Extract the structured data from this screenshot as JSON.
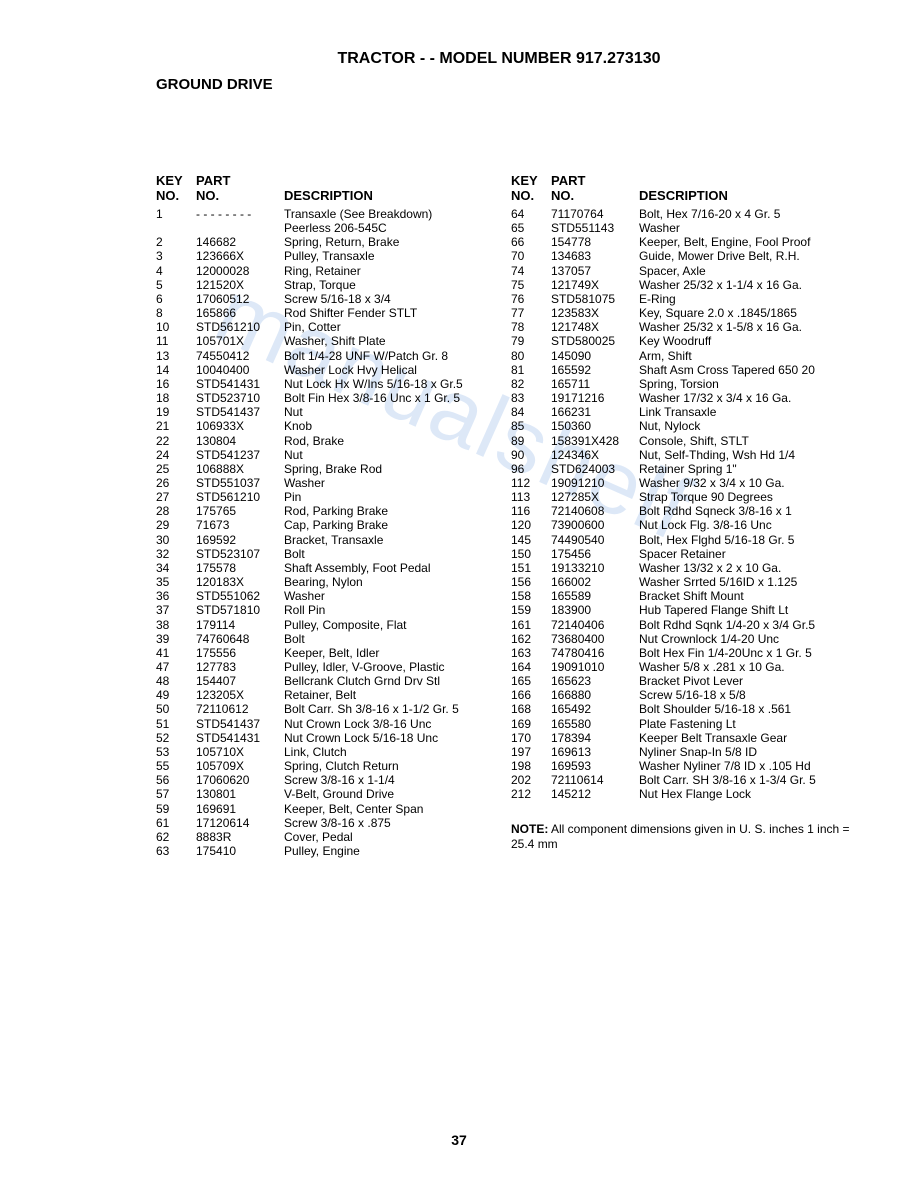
{
  "title": "TRACTOR - - MODEL NUMBER 917.273130",
  "subtitle": "GROUND DRIVE",
  "watermark": "manualshelf",
  "page_number": "37",
  "headers": {
    "key_no": "KEY NO.",
    "part_no": "PART NO.",
    "description": "DESCRIPTION"
  },
  "left_rows": [
    {
      "key": "1",
      "part": "- - - - - - - -",
      "desc": "Transaxle (See Breakdown) Peerless 206-545C"
    },
    {
      "key": "2",
      "part": "146682",
      "desc": "Spring, Return, Brake"
    },
    {
      "key": "3",
      "part": "123666X",
      "desc": "Pulley, Transaxle"
    },
    {
      "key": "4",
      "part": "12000028",
      "desc": "Ring, Retainer"
    },
    {
      "key": "5",
      "part": "121520X",
      "desc": "Strap, Torque"
    },
    {
      "key": "6",
      "part": "17060512",
      "desc": "Screw  5/16-18 x 3/4"
    },
    {
      "key": "8",
      "part": "165866",
      "desc": "Rod Shifter Fender STLT"
    },
    {
      "key": "10",
      "part": "STD561210",
      "desc": "Pin, Cotter"
    },
    {
      "key": "11",
      "part": "105701X",
      "desc": "Washer, Shift Plate"
    },
    {
      "key": "13",
      "part": "74550412",
      "desc": "Bolt 1/4-28 UNF W/Patch Gr. 8"
    },
    {
      "key": "14",
      "part": "10040400",
      "desc": "Washer Lock Hvy Helical"
    },
    {
      "key": "16",
      "part": "STD541431",
      "desc": "Nut Lock Hx W/Ins 5/16-18 x Gr.5"
    },
    {
      "key": "18",
      "part": "STD523710",
      "desc": "Bolt Fin Hex 3/8-16 Unc x 1 Gr. 5"
    },
    {
      "key": "19",
      "part": "STD541437",
      "desc": "Nut"
    },
    {
      "key": "21",
      "part": "106933X",
      "desc": "Knob"
    },
    {
      "key": "22",
      "part": "130804",
      "desc": "Rod, Brake"
    },
    {
      "key": "24",
      "part": "STD541237",
      "desc": "Nut"
    },
    {
      "key": "25",
      "part": "106888X",
      "desc": "Spring, Brake Rod"
    },
    {
      "key": "26",
      "part": "STD551037",
      "desc": "Washer"
    },
    {
      "key": "27",
      "part": "STD561210",
      "desc": "Pin"
    },
    {
      "key": "28",
      "part": "175765",
      "desc": "Rod, Parking Brake"
    },
    {
      "key": "29",
      "part": "71673",
      "desc": "Cap, Parking Brake"
    },
    {
      "key": "30",
      "part": "169592",
      "desc": "Bracket, Transaxle"
    },
    {
      "key": "32",
      "part": "STD523107",
      "desc": "Bolt"
    },
    {
      "key": "34",
      "part": "175578",
      "desc": "Shaft Assembly, Foot Pedal"
    },
    {
      "key": "35",
      "part": "120183X",
      "desc": "Bearing, Nylon"
    },
    {
      "key": "36",
      "part": "STD551062",
      "desc": "Washer"
    },
    {
      "key": "37",
      "part": "STD571810",
      "desc": "Roll Pin"
    },
    {
      "key": "38",
      "part": "179114",
      "desc": "Pulley, Composite, Flat"
    },
    {
      "key": "39",
      "part": "74760648",
      "desc": "Bolt"
    },
    {
      "key": "41",
      "part": "175556",
      "desc": "Keeper, Belt, Idler"
    },
    {
      "key": "47",
      "part": "127783",
      "desc": "Pulley, Idler, V-Groove, Plastic"
    },
    {
      "key": "48",
      "part": "154407",
      "desc": "Bellcrank Clutch Grnd Drv Stl"
    },
    {
      "key": "49",
      "part": "123205X",
      "desc": "Retainer, Belt"
    },
    {
      "key": "50",
      "part": "72110612",
      "desc": "Bolt Carr. Sh 3/8-16 x 1-1/2 Gr. 5"
    },
    {
      "key": "51",
      "part": "STD541437",
      "desc": "Nut Crown Lock 3/8-16 Unc"
    },
    {
      "key": "52",
      "part": "STD541431",
      "desc": "Nut Crown Lock 5/16-18 Unc"
    },
    {
      "key": "53",
      "part": "105710X",
      "desc": "Link, Clutch"
    },
    {
      "key": "55",
      "part": "105709X",
      "desc": "Spring, Clutch Return"
    },
    {
      "key": "56",
      "part": "17060620",
      "desc": "Screw  3/8-16 x 1-1/4"
    },
    {
      "key": "57",
      "part": "130801",
      "desc": "V-Belt, Ground Drive"
    },
    {
      "key": "59",
      "part": "169691",
      "desc": "Keeper, Belt, Center Span"
    },
    {
      "key": "61",
      "part": "17120614",
      "desc": "Screw  3/8-16 x .875"
    },
    {
      "key": "62",
      "part": "8883R",
      "desc": "Cover, Pedal"
    },
    {
      "key": "63",
      "part": "175410",
      "desc": "Pulley, Engine"
    }
  ],
  "right_rows": [
    {
      "key": "64",
      "part": "71170764",
      "desc": "Bolt, Hex 7/16-20 x 4 Gr. 5"
    },
    {
      "key": "65",
      "part": "STD551143",
      "desc": "Washer"
    },
    {
      "key": "66",
      "part": "154778",
      "desc": "Keeper, Belt, Engine, Fool Proof"
    },
    {
      "key": "70",
      "part": "134683",
      "desc": "Guide, Mower Drive Belt, R.H."
    },
    {
      "key": "74",
      "part": "137057",
      "desc": "Spacer, Axle"
    },
    {
      "key": "75",
      "part": "121749X",
      "desc": "Washer 25/32 x 1-1/4 x 16 Ga."
    },
    {
      "key": "76",
      "part": "STD581075",
      "desc": "E-Ring"
    },
    {
      "key": "77",
      "part": "123583X",
      "desc": "Key, Square  2.0 x .1845/1865"
    },
    {
      "key": "78",
      "part": "121748X",
      "desc": "Washer  25/32 x 1-5/8 x 16 Ga."
    },
    {
      "key": "79",
      "part": "STD580025",
      "desc": "Key Woodruff"
    },
    {
      "key": "80",
      "part": "145090",
      "desc": "Arm, Shift"
    },
    {
      "key": "81",
      "part": "165592",
      "desc": "Shaft Asm Cross Tapered 650 20"
    },
    {
      "key": "82",
      "part": "165711",
      "desc": "Spring, Torsion"
    },
    {
      "key": "83",
      "part": "19171216",
      "desc": "Washer  17/32 x 3/4 x 16 Ga."
    },
    {
      "key": "84",
      "part": "166231",
      "desc": "Link Transaxle"
    },
    {
      "key": "85",
      "part": "150360",
      "desc": "Nut, Nylock"
    },
    {
      "key": "89",
      "part": "158391X428",
      "desc": "Console, Shift, STLT"
    },
    {
      "key": "90",
      "part": "124346X",
      "desc": "Nut, Self-Thding, Wsh Hd 1/4"
    },
    {
      "key": "96",
      "part": "STD624003",
      "desc": "Retainer Spring 1\""
    },
    {
      "key": "112",
      "part": "19091210",
      "desc": "Washer  9/32 x 3/4 x 10 Ga."
    },
    {
      "key": "113",
      "part": "127285X",
      "desc": "Strap Torque 90 Degrees"
    },
    {
      "key": "116",
      "part": "72140608",
      "desc": "Bolt Rdhd Sqneck 3/8-16 x 1"
    },
    {
      "key": "120",
      "part": "73900600",
      "desc": "Nut Lock Flg.  3/8-16 Unc"
    },
    {
      "key": "145",
      "part": "74490540",
      "desc": "Bolt, Hex Flghd  5/16-18 Gr. 5"
    },
    {
      "key": "150",
      "part": "175456",
      "desc": "Spacer Retainer"
    },
    {
      "key": "151",
      "part": "19133210",
      "desc": "Washer  13/32 x 2 x 10 Ga."
    },
    {
      "key": "156",
      "part": "166002",
      "desc": "Washer Srrted 5/16ID x 1.125"
    },
    {
      "key": "158",
      "part": "165589",
      "desc": "Bracket Shift Mount"
    },
    {
      "key": "159",
      "part": "183900",
      "desc": "Hub Tapered Flange Shift Lt"
    },
    {
      "key": "161",
      "part": "72140406",
      "desc": "Bolt Rdhd Sqnk 1/4-20 x 3/4 Gr.5"
    },
    {
      "key": "162",
      "part": "73680400",
      "desc": "Nut Crownlock 1/4-20 Unc"
    },
    {
      "key": "163",
      "part": "74780416",
      "desc": "Bolt Hex Fin 1/4-20Unc x 1 Gr.  5"
    },
    {
      "key": "164",
      "part": "19091010",
      "desc": "Washer 5/8 x .281 x 10 Ga."
    },
    {
      "key": "165",
      "part": "165623",
      "desc": "Bracket Pivot Lever"
    },
    {
      "key": "166",
      "part": "166880",
      "desc": "Screw 5/16-18 x 5/8"
    },
    {
      "key": "168",
      "part": "165492",
      "desc": "Bolt Shoulder 5/16-18 x .561"
    },
    {
      "key": "169",
      "part": "165580",
      "desc": "Plate Fastening Lt"
    },
    {
      "key": "170",
      "part": "178394",
      "desc": "Keeper Belt Transaxle Gear"
    },
    {
      "key": "197",
      "part": "169613",
      "desc": "Nyliner Snap-In 5/8 ID"
    },
    {
      "key": "198",
      "part": "169593",
      "desc": "Washer Nyliner 7/8 ID x .105 Hd"
    },
    {
      "key": "202",
      "part": "72110614",
      "desc": "Bolt Carr. SH 3/8-16 x 1-3/4 Gr. 5"
    },
    {
      "key": "212",
      "part": "145212",
      "desc": "Nut Hex Flange Lock"
    }
  ],
  "note_label": "NOTE:",
  "note_text": "  All component dimensions given in U. S. inches 1 inch = 25.4 mm"
}
